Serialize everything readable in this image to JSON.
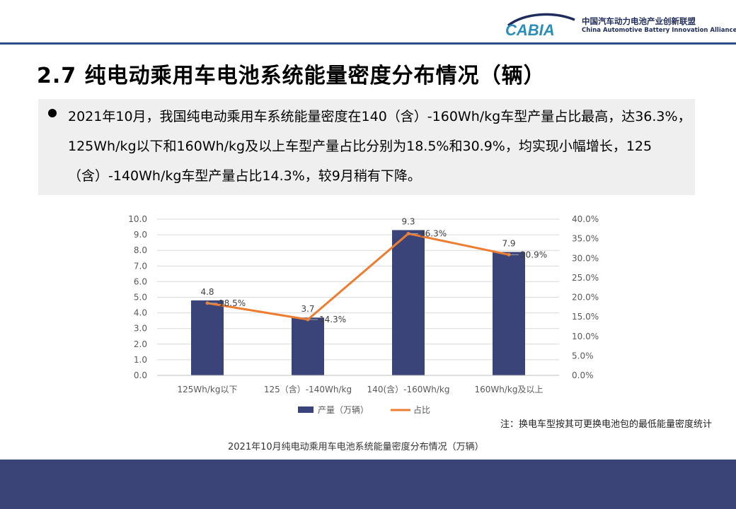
{
  "header": {
    "logo_text": "CABIA",
    "org_cn": "中国汽车动力电池产业创新联盟",
    "org_en": "China Automotive Battery Innovation Alliance",
    "brand_color": "#1f2d5c",
    "accent_color": "#2f4a8a"
  },
  "slide": {
    "title": "2.7 纯电动乘用车电池系统能量密度分布情况（辆）",
    "bullet": "2021年10月，我国纯电动乘用车系统能量密度在140（含）-160Wh/kg车型产量占比最高，达36.3%，125Wh/kg以下和160Wh/kg及以上车型产量占比分别为18.5%和30.9%，均实现小幅增长，125（含）-140Wh/kg车型产量占比14.3%，较9月稍有下降。",
    "note": "注：换电车型按其可更换电池包的最低能量密度统计",
    "chart_caption": "2021年10月纯电动乘用车电池系统能量密度分布情况（万辆）"
  },
  "chart_data": {
    "type": "bar",
    "title": "2021年10月纯电动乘用车电池系统能量密度分布情况（万辆）",
    "categories": [
      "125Wh/kg以下",
      "125（含）-140Wh/kg",
      "140(含）-160Wh/kg",
      "160Wh/kg及以上"
    ],
    "series": [
      {
        "name": "产量（万辆）",
        "type": "bar",
        "axis": "left",
        "color": "#3b4478",
        "values": [
          4.8,
          3.7,
          9.3,
          7.9
        ],
        "labels": [
          "4.8",
          "3.7",
          "9.3",
          "7.9"
        ]
      },
      {
        "name": "占比",
        "type": "line",
        "axis": "right",
        "color": "#ed7d31",
        "values": [
          18.5,
          14.3,
          36.3,
          30.9
        ],
        "labels": [
          "18.5%",
          "14.3%",
          "36.3%",
          "30.9%"
        ]
      }
    ],
    "y_left": {
      "min": 0,
      "max": 10,
      "ticks": [
        "0.0",
        "1.0",
        "2.0",
        "3.0",
        "4.0",
        "5.0",
        "6.0",
        "7.0",
        "8.0",
        "9.0",
        "10.0"
      ]
    },
    "y_right": {
      "min": 0,
      "max": 40,
      "ticks": [
        "0.0%",
        "5.0%",
        "10.0%",
        "15.0%",
        "20.0%",
        "25.0%",
        "30.0%",
        "35.0%",
        "40.0%"
      ]
    },
    "grid": true,
    "legend_position": "bottom"
  }
}
